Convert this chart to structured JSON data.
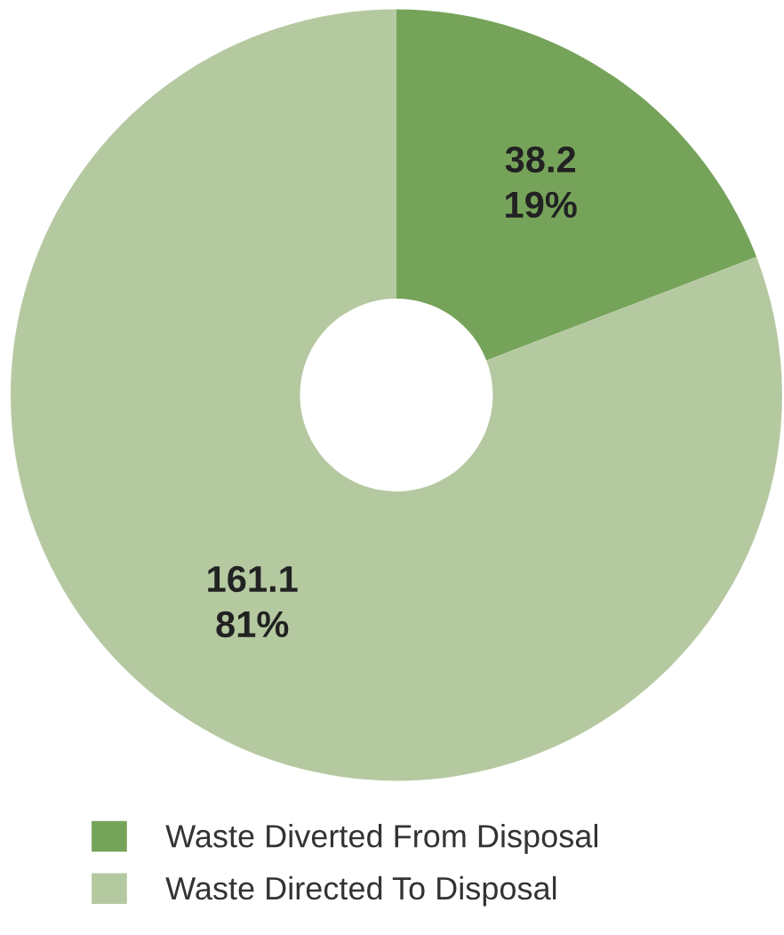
{
  "chart_data": {
    "type": "donut",
    "categories": [
      "Waste Diverted From Disposal",
      "Waste Directed To Disposal"
    ],
    "values": [
      38.2,
      161.1
    ],
    "colors": [
      "#76a35a",
      "#b5c9a1"
    ],
    "value_labels": [
      "38.2\n19%",
      "161.1\n81%"
    ],
    "legend": "bottom"
  }
}
